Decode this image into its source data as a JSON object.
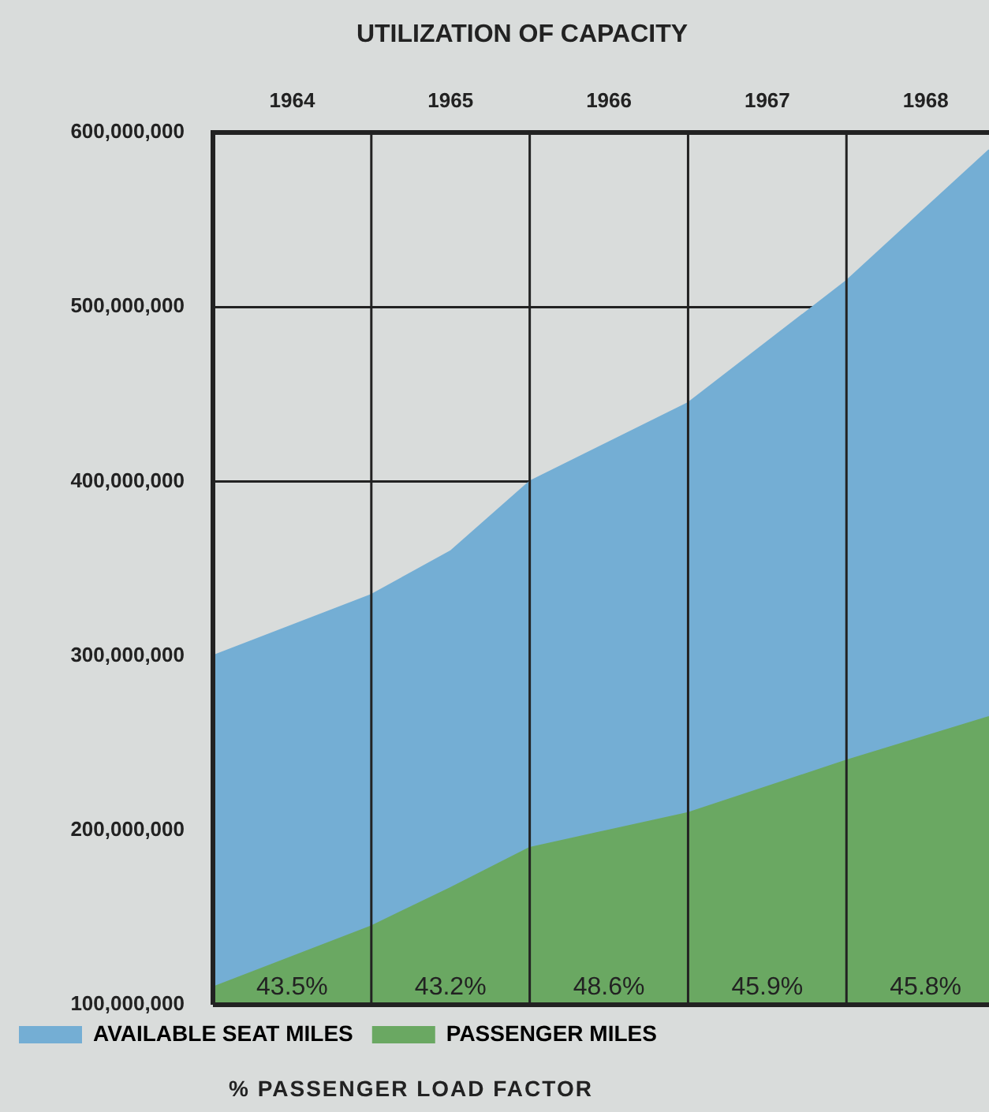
{
  "chart_data": {
    "type": "area",
    "title": "UTILIZATION OF CAPACITY",
    "x": [
      1963.5,
      1964.5,
      1965,
      1965.5,
      1966.5,
      1967.5,
      1968.4
    ],
    "xlim": [
      1963.5,
      1968.4
    ],
    "xticks": [
      1964,
      1965,
      1966,
      1967,
      1968
    ],
    "ylim": [
      100000000,
      600000000
    ],
    "yticks": [
      {
        "value": 100000000,
        "label": "100,000,000"
      },
      {
        "value": 200000000,
        "label": "200,000,000"
      },
      {
        "value": 300000000,
        "label": "300,000,000"
      },
      {
        "value": 400000000,
        "label": "400,000,000"
      },
      {
        "value": 500000000,
        "label": "500,000,000"
      },
      {
        "value": 600000000,
        "label": "600,000,000"
      }
    ],
    "series": [
      {
        "name": "AVAILABLE SEAT MILES",
        "color": "#74aed4",
        "values": [
          300000000,
          335000000,
          360000000,
          400000000,
          445000000,
          515000000,
          590000000
        ]
      },
      {
        "name": "PASSENGER MILES",
        "color": "#6aa862",
        "values": [
          110000000,
          145000000,
          167000000,
          190000000,
          210000000,
          240000000,
          265000000
        ]
      }
    ],
    "ref_lines": [
      {
        "axis": "x",
        "value": 1964.5,
        "color": "#222222"
      },
      {
        "axis": "x",
        "value": 1965.5,
        "color": "#222222"
      },
      {
        "axis": "x",
        "value": 1966.5,
        "color": "#222222"
      },
      {
        "axis": "x",
        "value": 1967.5,
        "color": "#222222"
      }
    ],
    "annotations": [
      {
        "text": "43.5%",
        "x": 1964,
        "y": 100000000
      },
      {
        "text": "43.2%",
        "x": 1965,
        "y": 100000000
      },
      {
        "text": "48.6%",
        "x": 1966,
        "y": 100000000
      },
      {
        "text": "45.9%",
        "x": 1967,
        "y": 100000000
      },
      {
        "text": "45.8%",
        "x": 1968,
        "y": 100000000
      },
      "% PASSENGER LOAD FACTOR"
    ],
    "grid": "y",
    "legend": "bottom"
  }
}
